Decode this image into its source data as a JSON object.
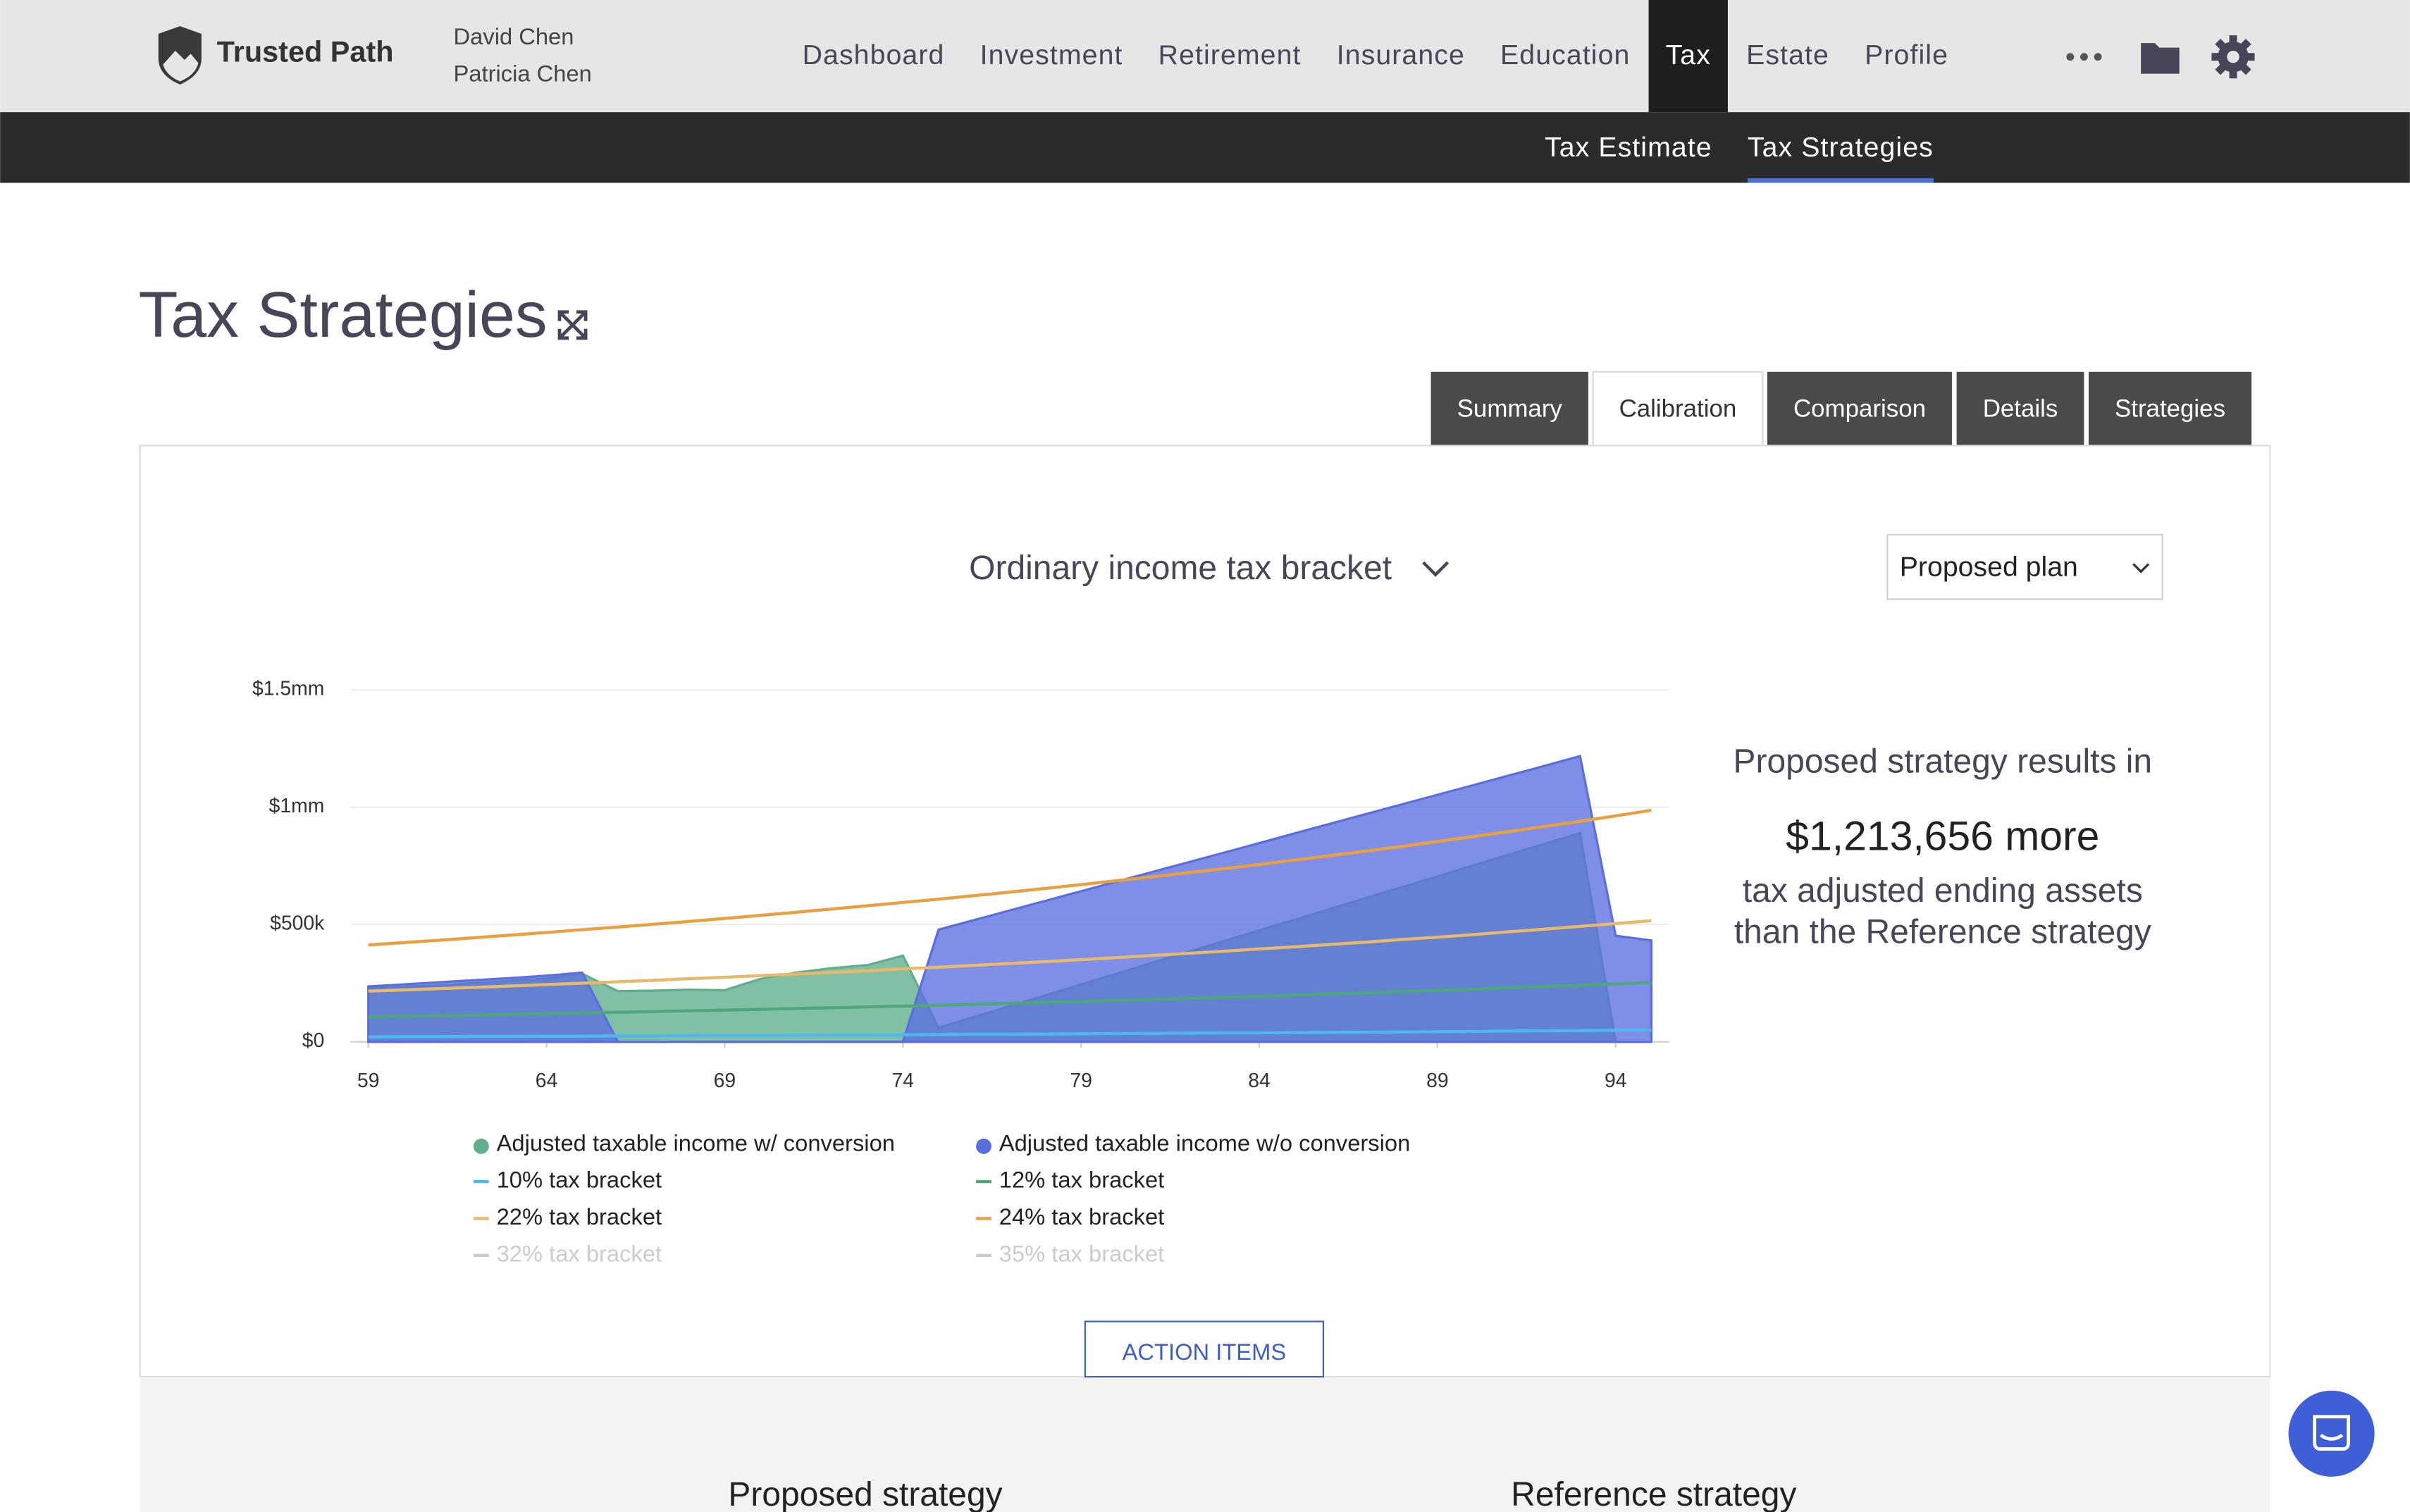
{
  "header": {
    "brand": "Trusted Path",
    "clients": [
      "David Chen",
      "Patricia Chen"
    ],
    "nav": [
      {
        "label": "Dashboard"
      },
      {
        "label": "Investment"
      },
      {
        "label": "Retirement"
      },
      {
        "label": "Insurance"
      },
      {
        "label": "Education"
      },
      {
        "label": "Tax",
        "active": true
      },
      {
        "label": "Estate"
      },
      {
        "label": "Profile"
      }
    ]
  },
  "subnav": [
    {
      "label": "Tax Estimate"
    },
    {
      "label": "Tax Strategies",
      "active": true
    }
  ],
  "page_title": "Tax Strategies",
  "tabs": [
    {
      "label": "Summary"
    },
    {
      "label": "Calibration",
      "active": true
    },
    {
      "label": "Comparison"
    },
    {
      "label": "Details"
    },
    {
      "label": "Strategies"
    }
  ],
  "selector": "Ordinary income tax bracket",
  "plan_select": "Proposed plan",
  "chart_data": {
    "type": "area",
    "x": [
      59,
      60,
      61,
      62,
      63,
      64,
      65,
      66,
      67,
      68,
      69,
      70,
      71,
      72,
      73,
      74,
      75,
      76,
      77,
      78,
      79,
      80,
      81,
      82,
      83,
      84,
      85,
      86,
      87,
      88,
      89,
      90,
      91,
      92,
      93,
      94,
      95
    ],
    "xlim": [
      58.5,
      95.5
    ],
    "xticks": [
      59,
      64,
      69,
      74,
      79,
      84,
      89,
      94
    ],
    "ylim": [
      0,
      1500000
    ],
    "yticks": [
      {
        "value": 0,
        "label": "$0"
      },
      {
        "value": 500000,
        "label": "$500k"
      },
      {
        "value": 1000000,
        "label": "$1mm"
      },
      {
        "value": 1500000,
        "label": "$1.5mm"
      }
    ],
    "grid": true,
    "series": [
      {
        "name": "Adjusted taxable income w/ conversion",
        "style": "area",
        "color": "#5fae8c",
        "values": [
          230000,
          235000,
          240000,
          250000,
          260000,
          270000,
          290000,
          216000,
          218000,
          222000,
          220000,
          268000,
          295000,
          314000,
          327000,
          367000,
          60000,
          106000,
          152000,
          198000,
          244000,
          291000,
          337000,
          383000,
          429000,
          475000,
          521000,
          567000,
          613000,
          659000,
          705000,
          752000,
          798000,
          844000,
          890000,
          0,
          0
        ]
      },
      {
        "name": "Adjusted taxable income w/o conversion",
        "style": "area",
        "color": "#5b6ee0",
        "values": [
          236000,
          245000,
          254000,
          263000,
          272000,
          282000,
          295000,
          0,
          0,
          0,
          0,
          0,
          0,
          0,
          0,
          0,
          478000,
          519000,
          560000,
          601000,
          642000,
          683000,
          724000,
          765000,
          806000,
          847000,
          889000,
          930000,
          971000,
          1012000,
          1053000,
          1094000,
          1135000,
          1176000,
          1218000,
          452000,
          432000
        ]
      },
      {
        "name": "10% tax bracket",
        "style": "line",
        "color": "#4db8f0",
        "values": [
          21000,
          22000,
          22000,
          23000,
          23000,
          24000,
          24000,
          25000,
          25000,
          26000,
          27000,
          27000,
          28000,
          29000,
          29000,
          30000,
          31000,
          32000,
          32000,
          33000,
          34000,
          35000,
          36000,
          37000,
          38000,
          38000,
          39000,
          40000,
          41000,
          42000,
          43000,
          44000,
          46000,
          47000,
          48000,
          49000,
          50000
        ]
      },
      {
        "name": "12% tax bracket",
        "style": "line",
        "color": "#4ca87a",
        "values": [
          106000,
          109000,
          111000,
          114000,
          117000,
          120000,
          123000,
          126000,
          129000,
          132000,
          135000,
          138000,
          142000,
          145000,
          149000,
          152000,
          156000,
          160000,
          164000,
          168000,
          172000,
          176000,
          181000,
          185000,
          189000,
          194000,
          199000,
          204000,
          209000,
          214000,
          219000,
          224000,
          230000,
          236000,
          241000,
          247000,
          253000
        ]
      },
      {
        "name": "22% tax bracket",
        "style": "line",
        "color": "#e8b96a",
        "values": [
          216000,
          221000,
          227000,
          232000,
          238000,
          244000,
          250000,
          256000,
          262000,
          269000,
          275000,
          282000,
          289000,
          296000,
          303000,
          311000,
          318000,
          326000,
          334000,
          342000,
          350000,
          359000,
          368000,
          377000,
          386000,
          396000,
          405000,
          415000,
          425000,
          436000,
          446000,
          457000,
          469000,
          480000,
          492000,
          504000,
          516000
        ]
      },
      {
        "name": "24% tax bracket",
        "style": "line",
        "color": "#e8a040",
        "values": [
          413000,
          423000,
          433000,
          444000,
          455000,
          466000,
          478000,
          489000,
          501000,
          513000,
          526000,
          539000,
          552000,
          566000,
          580000,
          594000,
          608000,
          623000,
          638000,
          654000,
          670000,
          687000,
          703000,
          721000,
          738000,
          756000,
          775000,
          794000,
          813000,
          833000,
          854000,
          875000,
          896000,
          918000,
          940000,
          963000,
          987000
        ]
      },
      {
        "name": "32% tax bracket",
        "style": "line",
        "color": "#cccccc",
        "visible": false
      },
      {
        "name": "35% tax bracket",
        "style": "line",
        "color": "#cccccc",
        "visible": false
      }
    ]
  },
  "result": {
    "intro": "Proposed strategy results in",
    "amount": "$1,213,656 more",
    "line1": "tax adjusted ending assets",
    "line2": "than the Reference strategy"
  },
  "button": "ACTION ITEMS",
  "sections": [
    "Proposed strategy",
    "Reference strategy"
  ]
}
